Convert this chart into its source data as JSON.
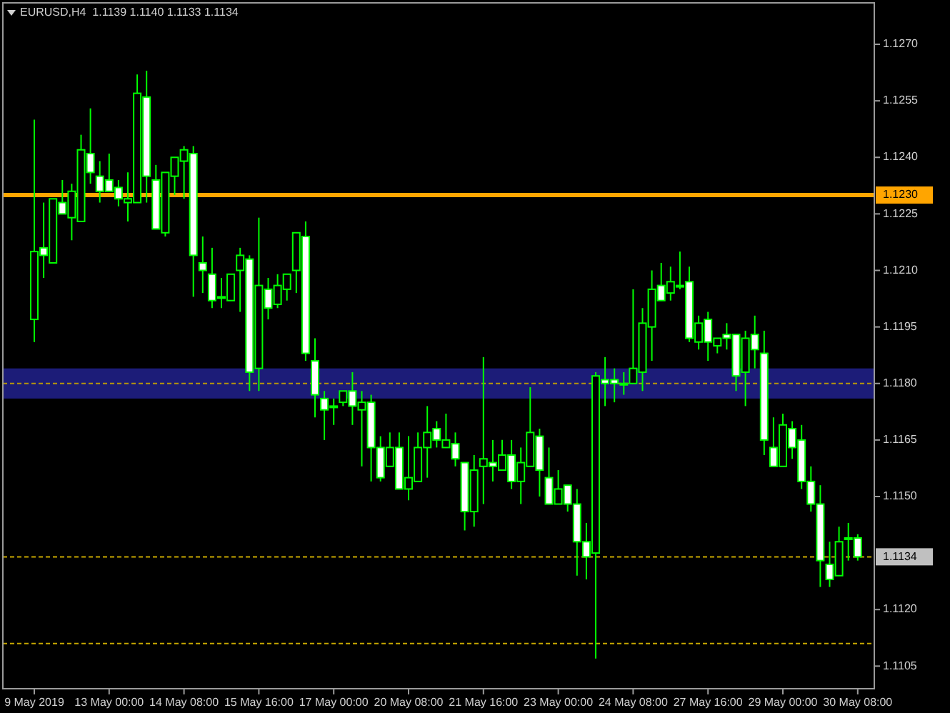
{
  "chart_data": {
    "type": "candlestick",
    "title": "EURUSD,H4  1.1139 1.1140 1.1133 1.1134",
    "color": "#00ff00",
    "categories": [
      "9 May 2019",
      null,
      null,
      null,
      null,
      null,
      null,
      null,
      "13 May 00:00",
      null,
      null,
      null,
      null,
      null,
      null,
      null,
      "14 May 08:00",
      null,
      null,
      null,
      null,
      null,
      null,
      null,
      "15 May 16:00",
      null,
      null,
      null,
      null,
      null,
      null,
      null,
      "17 May 00:00",
      null,
      null,
      null,
      null,
      null,
      null,
      null,
      "20 May 08:00",
      null,
      null,
      null,
      null,
      null,
      null,
      null,
      "21 May 16:00",
      null,
      null,
      null,
      null,
      null,
      null,
      null,
      "23 May 00:00",
      null,
      null,
      null,
      null,
      null,
      null,
      null,
      "24 May 08:00",
      null,
      null,
      null,
      null,
      null,
      null,
      null,
      "27 May 16:00",
      null,
      null,
      null,
      null,
      null,
      null,
      null,
      "29 May 00:00",
      null,
      null,
      null,
      null,
      null,
      null,
      null,
      "30 May 08:00"
    ],
    "ohlc": [
      [
        1.1197,
        1.125,
        1.1191,
        1.1215
      ],
      [
        1.1216,
        1.1228,
        1.1208,
        1.1214
      ],
      [
        1.1212,
        1.1229,
        1.1212,
        1.1229
      ],
      [
        1.1228,
        1.1234,
        1.1225,
        1.1225
      ],
      [
        1.1224,
        1.1233,
        1.1218,
        1.1231
      ],
      [
        1.1223,
        1.1246,
        1.1223,
        1.1242
      ],
      [
        1.1241,
        1.1253,
        1.1233,
        1.1236
      ],
      [
        1.1235,
        1.1239,
        1.1228,
        1.1231
      ],
      [
        1.1234,
        1.1241,
        1.1231,
        1.1231
      ],
      [
        1.1232,
        1.1234,
        1.1227,
        1.1229
      ],
      [
        1.1228,
        1.1236,
        1.1223,
        1.1229
      ],
      [
        1.1228,
        1.1262,
        1.1228,
        1.1257
      ],
      [
        1.1256,
        1.1263,
        1.1228,
        1.1235
      ],
      [
        1.1234,
        1.1238,
        1.1221,
        1.1221
      ],
      [
        1.122,
        1.1236,
        1.1219,
        1.1236
      ],
      [
        1.1235,
        1.124,
        1.123,
        1.124
      ],
      [
        1.1239,
        1.1243,
        1.1229,
        1.1242
      ],
      [
        1.1241,
        1.1243,
        1.1203,
        1.1214
      ],
      [
        1.1212,
        1.1219,
        1.1204,
        1.121
      ],
      [
        1.1209,
        1.1216,
        1.12,
        1.1202
      ],
      [
        1.1203,
        1.1208,
        1.12,
        1.1203
      ],
      [
        1.1202,
        1.1209,
        1.1202,
        1.1209
      ],
      [
        1.121,
        1.1216,
        1.1199,
        1.1214
      ],
      [
        1.1213,
        1.1214,
        1.1178,
        1.1183
      ],
      [
        1.1184,
        1.1224,
        1.1178,
        1.1206
      ],
      [
        1.1205,
        1.1208,
        1.1197,
        1.12
      ],
      [
        1.1201,
        1.1209,
        1.12,
        1.1206
      ],
      [
        1.1205,
        1.1209,
        1.1202,
        1.1209
      ],
      [
        1.121,
        1.122,
        1.1204,
        1.122
      ],
      [
        1.1219,
        1.1223,
        1.1186,
        1.1188
      ],
      [
        1.1186,
        1.1192,
        1.1171,
        1.1177
      ],
      [
        1.1176,
        1.1178,
        1.1165,
        1.1173
      ],
      [
        1.1174,
        1.1176,
        1.1169,
        1.1174
      ],
      [
        1.1175,
        1.1178,
        1.1174,
        1.1178
      ],
      [
        1.1178,
        1.1183,
        1.1169,
        1.1174
      ],
      [
        1.1173,
        1.1178,
        1.1158,
        1.1175
      ],
      [
        1.1175,
        1.1177,
        1.1154,
        1.1163
      ],
      [
        1.1163,
        1.1166,
        1.1154,
        1.1155
      ],
      [
        1.1158,
        1.1167,
        1.1158,
        1.1163
      ],
      [
        1.1163,
        1.1167,
        1.1152,
        1.1152
      ],
      [
        1.1152,
        1.1166,
        1.1149,
        1.1155
      ],
      [
        1.1154,
        1.1167,
        1.1154,
        1.1163
      ],
      [
        1.1163,
        1.1174,
        1.1155,
        1.1167
      ],
      [
        1.1168,
        1.117,
        1.1163,
        1.1165
      ],
      [
        1.1163,
        1.1172,
        1.1163,
        1.1165
      ],
      [
        1.1164,
        1.1167,
        1.1158,
        1.116
      ],
      [
        1.1159,
        1.1159,
        1.1141,
        1.1146
      ],
      [
        1.1146,
        1.1161,
        1.1142,
        1.1157
      ],
      [
        1.1158,
        1.1187,
        1.1148,
        1.116
      ],
      [
        1.1159,
        1.1165,
        1.1154,
        1.1158
      ],
      [
        1.1157,
        1.1165,
        1.1157,
        1.1161
      ],
      [
        1.1161,
        1.1165,
        1.1152,
        1.1154
      ],
      [
        1.1154,
        1.1163,
        1.1148,
        1.1159
      ],
      [
        1.1158,
        1.1179,
        1.1158,
        1.1167
      ],
      [
        1.1166,
        1.1168,
        1.115,
        1.1157
      ],
      [
        1.1155,
        1.1163,
        1.1148,
        1.1148
      ],
      [
        1.1148,
        1.1157,
        1.1148,
        1.1152
      ],
      [
        1.1153,
        1.1153,
        1.1146,
        1.1148
      ],
      [
        1.1148,
        1.1152,
        1.1129,
        1.1138
      ],
      [
        1.1138,
        1.1143,
        1.1128,
        1.1134
      ],
      [
        1.1135,
        1.1183,
        1.1107,
        1.1182
      ],
      [
        1.1181,
        1.1187,
        1.1174,
        1.118
      ],
      [
        1.1181,
        1.1184,
        1.1175,
        1.118
      ],
      [
        1.118,
        1.1183,
        1.1177,
        1.118
      ],
      [
        1.118,
        1.1205,
        1.118,
        1.1184
      ],
      [
        1.1183,
        1.12,
        1.1178,
        1.1196
      ],
      [
        1.1195,
        1.121,
        1.1186,
        1.1205
      ],
      [
        1.1206,
        1.1212,
        1.1202,
        1.1202
      ],
      [
        1.1204,
        1.1211,
        1.1202,
        1.1207
      ],
      [
        1.1206,
        1.1215,
        1.1205,
        1.1206
      ],
      [
        1.1207,
        1.1211,
        1.1191,
        1.1192
      ],
      [
        1.1191,
        1.1198,
        1.1189,
        1.1196
      ],
      [
        1.1197,
        1.1199,
        1.1186,
        1.1191
      ],
      [
        1.119,
        1.1192,
        1.1188,
        1.1192
      ],
      [
        1.1193,
        1.1196,
        1.1189,
        1.1192
      ],
      [
        1.1193,
        1.1193,
        1.1178,
        1.1182
      ],
      [
        1.1183,
        1.1194,
        1.1174,
        1.1192
      ],
      [
        1.1193,
        1.1198,
        1.1184,
        1.1189
      ],
      [
        1.1188,
        1.1194,
        1.1161,
        1.1165
      ],
      [
        1.1163,
        1.1171,
        1.1158,
        1.1158
      ],
      [
        1.1158,
        1.1172,
        1.1158,
        1.1169
      ],
      [
        1.1168,
        1.117,
        1.116,
        1.1163
      ],
      [
        1.1165,
        1.1169,
        1.1152,
        1.1154
      ],
      [
        1.1154,
        1.1158,
        1.1146,
        1.1148
      ],
      [
        1.1148,
        1.1153,
        1.1126,
        1.1133
      ],
      [
        1.1132,
        1.1138,
        1.1126,
        1.1128
      ],
      [
        1.1129,
        1.1142,
        1.1129,
        1.1138
      ],
      [
        1.1139,
        1.1143,
        1.1133,
        1.1139
      ],
      [
        1.1139,
        1.114,
        1.1133,
        1.1134
      ]
    ],
    "ylim": [
      1.1099,
      1.1281
    ],
    "yticks": [
      {
        "value": 1.127,
        "label": "1.1270"
      },
      1.1255,
      {
        "value": 1.124,
        "label": "1.1240"
      },
      1.1225,
      {
        "value": 1.121,
        "label": "1.1210"
      },
      1.1195,
      {
        "value": 1.118,
        "label": "1.1180"
      },
      1.1165,
      {
        "value": 1.115,
        "label": "1.1150"
      },
      {
        "value": 1.112,
        "label": "1.1120"
      },
      1.1105
    ],
    "ref_lines": [
      {
        "axis": "y",
        "value": 1.123,
        "label": "1.1230",
        "color": "#ffa500",
        "line_style": "solid"
      },
      {
        "axis": "y",
        "value": 1.118,
        "color": "#b8960b",
        "line_style": "dashed"
      },
      {
        "axis": "y",
        "value": 1.1134,
        "label": "1.1134",
        "color": "#c8a800",
        "line_style": "dashed"
      },
      {
        "axis": "y",
        "value": 1.1111,
        "color": "#c8a800",
        "line_style": "dashed"
      }
    ],
    "bands": [
      {
        "axis": "y",
        "from": 1.1176,
        "to": 1.1184,
        "color": "#1c1c78"
      }
    ],
    "grid": false
  }
}
